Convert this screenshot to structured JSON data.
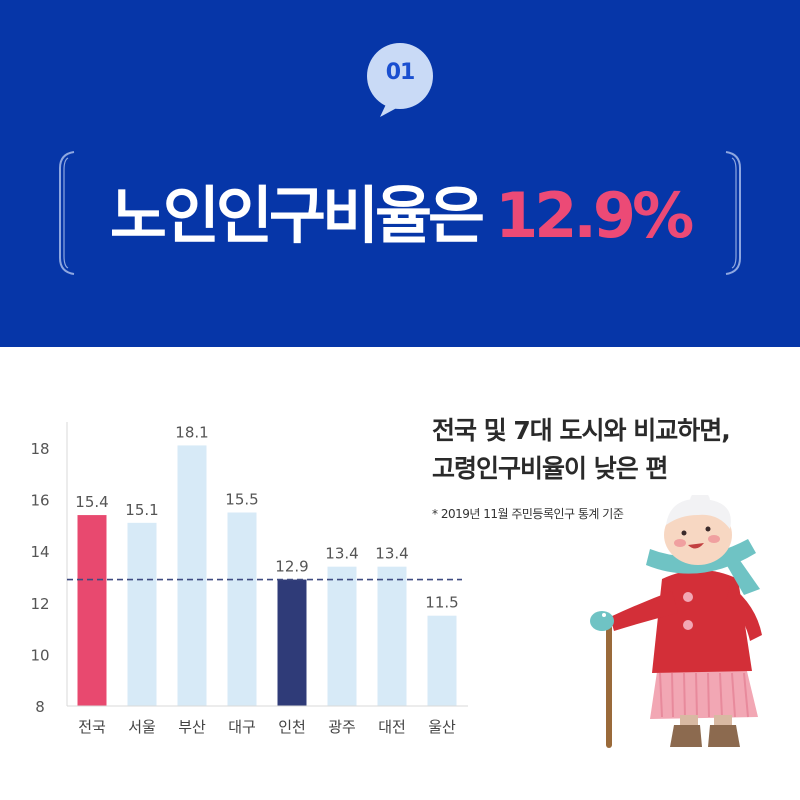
{
  "badge": {
    "number": "01"
  },
  "headline": {
    "text": "노인인구비율은",
    "highlight": "12.9%"
  },
  "subtitle": {
    "line1": "전국 및 7대 도시와 비교하면,",
    "line2": "고령인구비율이 낮은 편"
  },
  "note": "* 2019년 11월 주민등록인구 통계 기준",
  "colors": {
    "banner": "#0636a8",
    "national": "#e8496f",
    "incheon": "#2f3b78",
    "other": "#d7eaf7",
    "reference_line": "#3e4a80",
    "headline_highlight": "#ec4a76"
  },
  "chart_data": {
    "type": "bar",
    "title": "",
    "xlabel": "",
    "ylabel": "",
    "categories": [
      "전국",
      "서울",
      "부산",
      "대구",
      "인천",
      "광주",
      "대전",
      "울산"
    ],
    "values": [
      15.4,
      15.1,
      18.1,
      15.5,
      12.9,
      13.4,
      13.4,
      11.5
    ],
    "value_labels": [
      "15.4",
      "15.1",
      "18.1",
      "15.5",
      "12.9",
      "13.4",
      "13.4",
      "11.5"
    ],
    "highlight": {
      "전국": "national",
      "인천": "incheon"
    },
    "ylim": [
      8,
      19
    ],
    "yticks": [
      8,
      10,
      12,
      14,
      16,
      18
    ],
    "reference_line": 12.9,
    "grid": false,
    "legend": "none"
  }
}
